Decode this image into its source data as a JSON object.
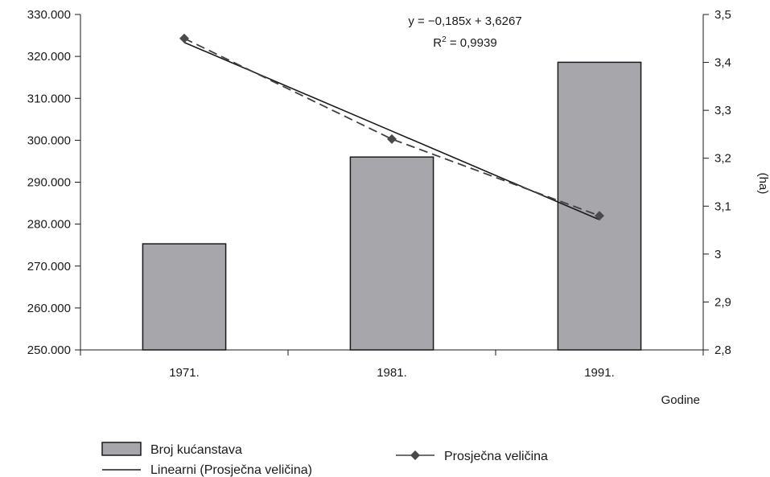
{
  "chart_data": {
    "type": "bar",
    "categories": [
      "1971.",
      "1981.",
      "1991."
    ],
    "xlabel": "Godine",
    "y2label": "(ha)",
    "ylim": [
      250000,
      330000
    ],
    "y2lim": [
      2.8,
      3.5
    ],
    "yticks": [
      "250.000",
      "260.000",
      "270.000",
      "280.000",
      "290.000",
      "300.000",
      "310.000",
      "320.000",
      "330.000"
    ],
    "y2ticks": [
      "2,8",
      "2,9",
      "3",
      "3,1",
      "3,2",
      "3,3",
      "3,4",
      "3,5"
    ],
    "series": [
      {
        "name": "Broj kućanstava",
        "kind": "bar",
        "axis": "left",
        "values": [
          275300,
          296000,
          318600
        ],
        "color": "#a6a6ab"
      },
      {
        "name": "Prosječna veličina",
        "kind": "line",
        "marker": "diamond",
        "line_style": "dashed",
        "axis": "right",
        "values": [
          3.45,
          3.24,
          3.08
        ],
        "color": "#404040"
      },
      {
        "name": "Linearni (Prosječna veličina)",
        "kind": "trendline",
        "axis": "right",
        "values": [
          3.4417,
          3.2567,
          3.0717
        ],
        "color": "#1a1a1a"
      }
    ],
    "annotations": {
      "equation": "y = −0,185x + 3,6267",
      "r2_label": "R",
      "r2_sup": "2",
      "r2_value": " = 0,9939"
    },
    "legend": {
      "placement": "bottom",
      "items": [
        "Broj kućanstava",
        "Prosječna veličina",
        "Linearni (Prosječna veličina)"
      ]
    }
  }
}
